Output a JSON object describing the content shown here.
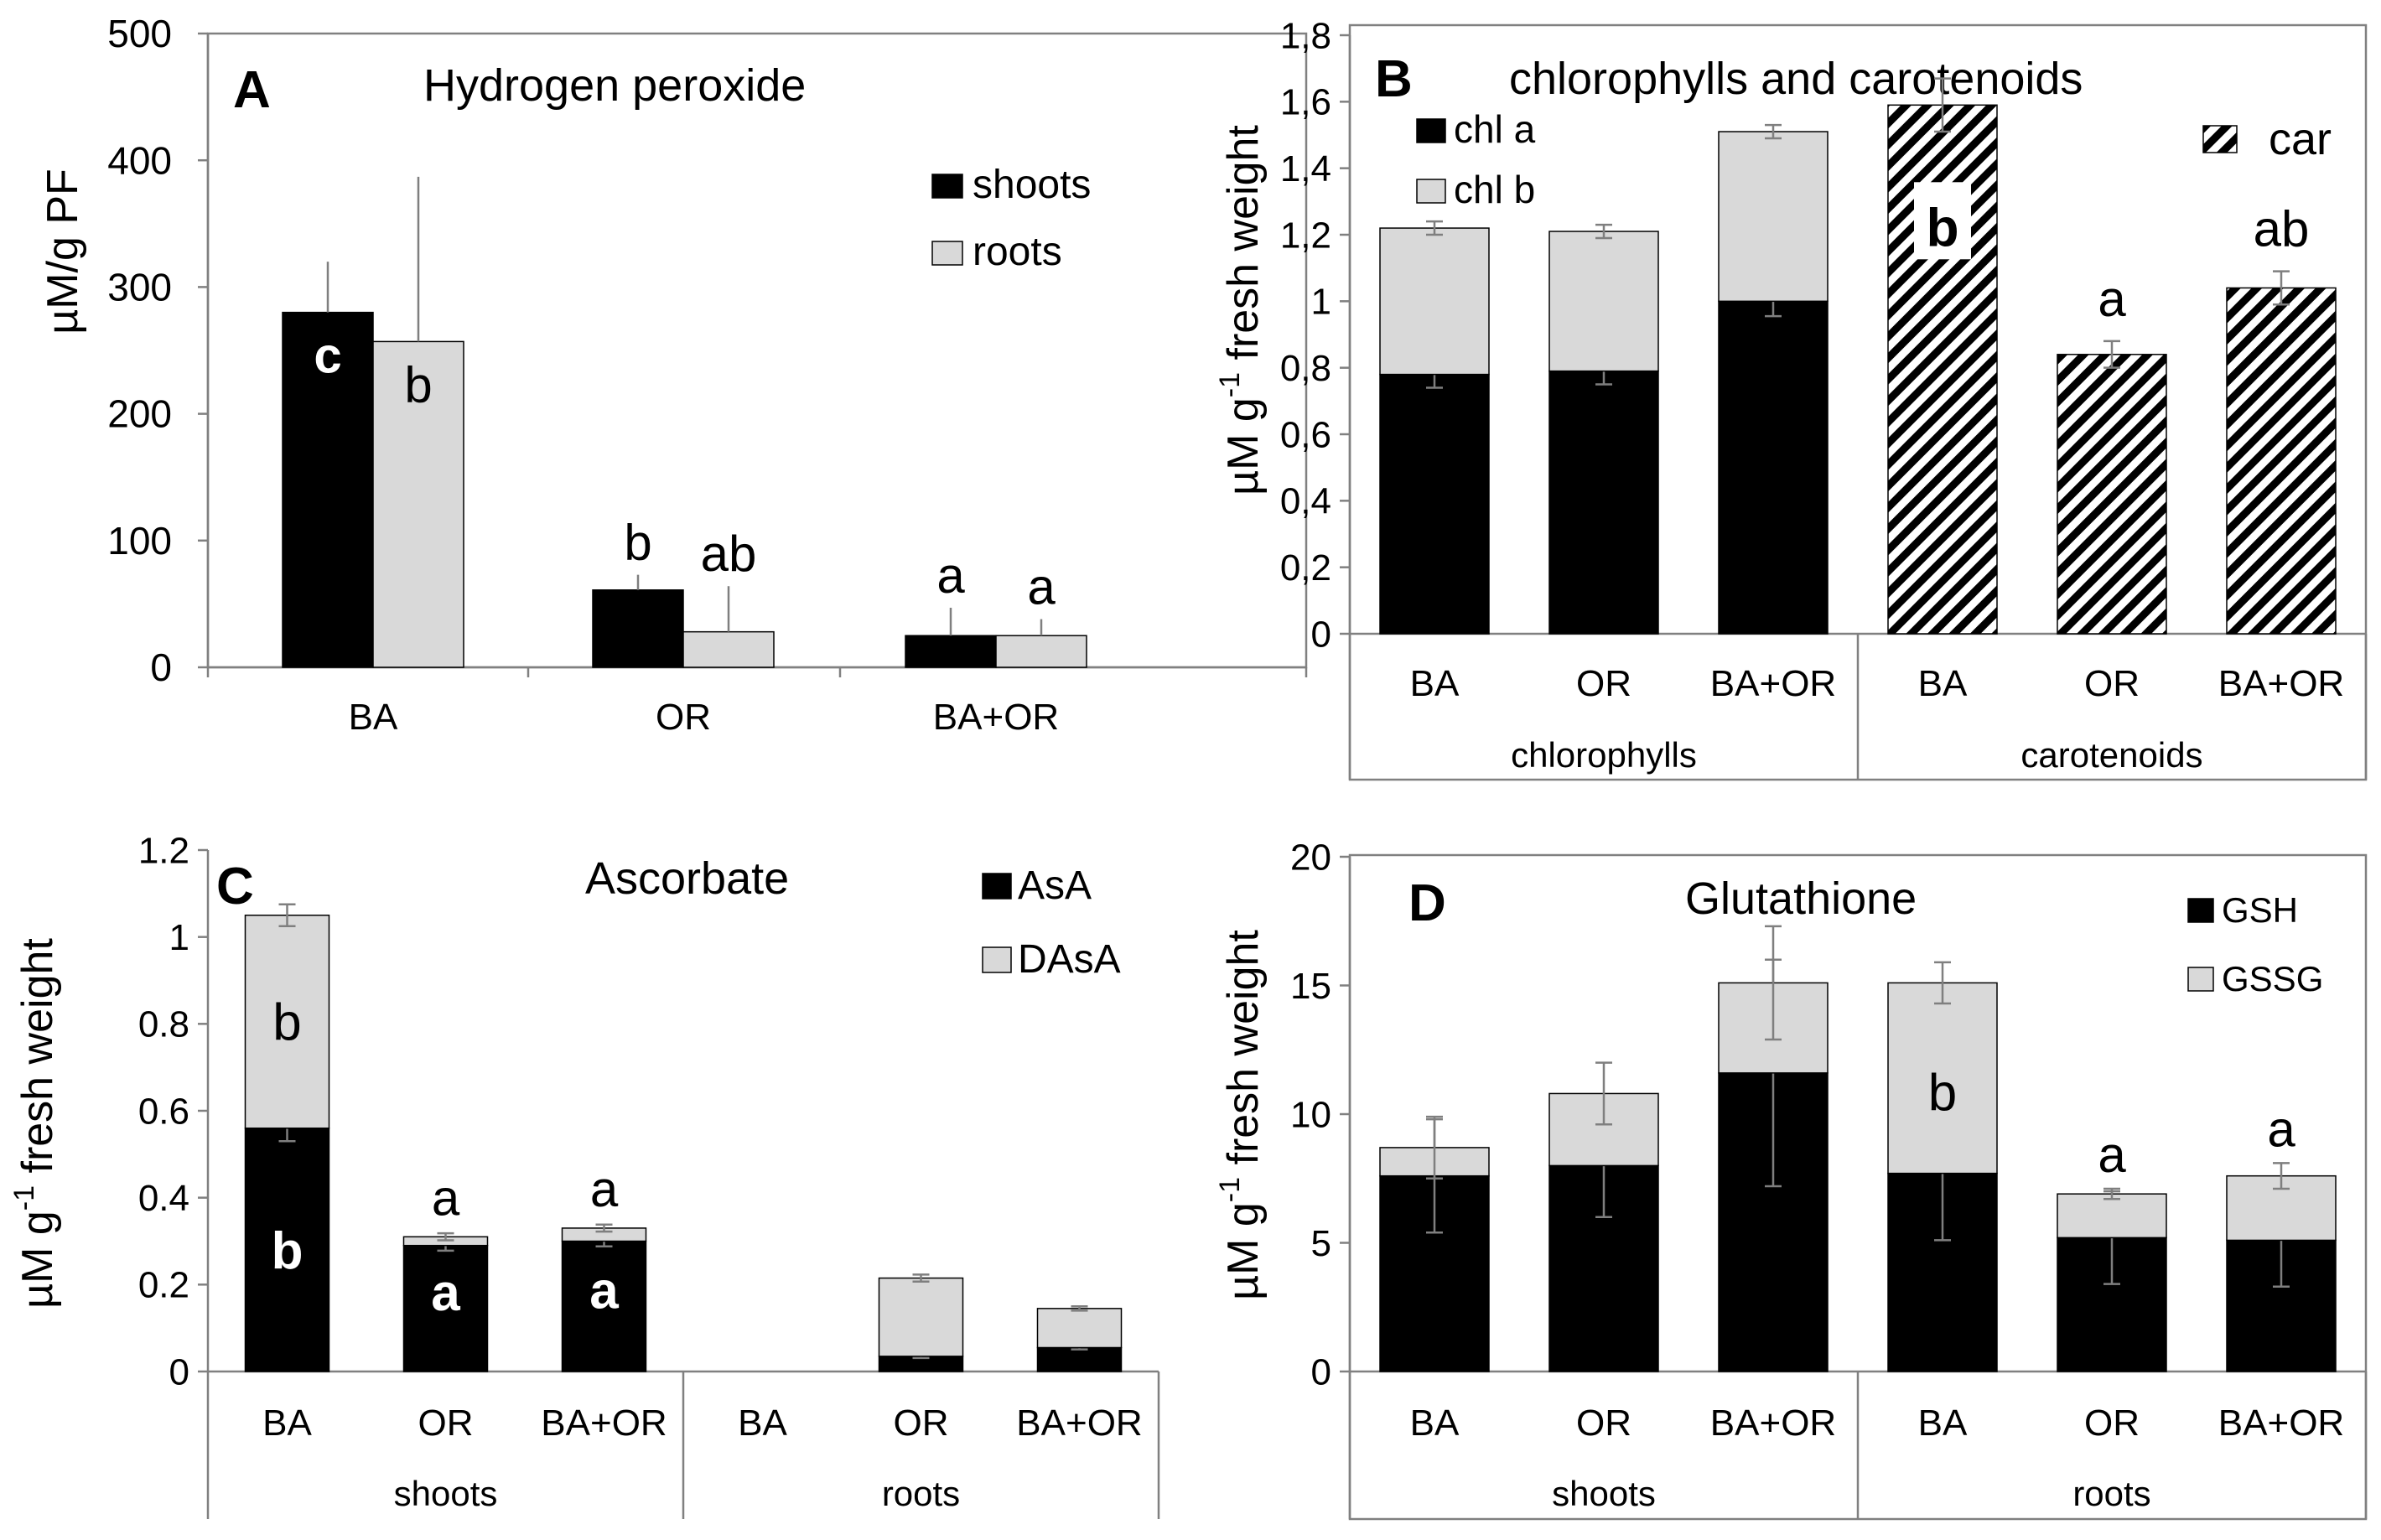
{
  "colors": {
    "black": "#000000",
    "grey": "#d9d9d9",
    "axis": "#808080",
    "error": "#7f7f7f"
  },
  "chart_data": [
    {
      "type": "bar",
      "panel": "A",
      "title": "Hydrogen  peroxide",
      "ylabel": "µM/g PF",
      "ylim": [
        0,
        500
      ],
      "yticks": [
        0,
        100,
        200,
        300,
        400,
        500
      ],
      "categories": [
        "BA",
        "OR",
        "BA+OR"
      ],
      "legend": {
        "placement": "top-right",
        "entries": [
          {
            "label": "shoots",
            "color": "#000000"
          },
          {
            "label": "roots",
            "color": "#d9d9d9"
          }
        ]
      },
      "series": [
        {
          "name": "shoots",
          "color": "#000000",
          "values": [
            280,
            61,
            25
          ],
          "errors": [
            40,
            12,
            22
          ],
          "letters": [
            "c",
            "b",
            "a"
          ],
          "letter_inside": [
            true,
            false,
            false
          ]
        },
        {
          "name": "roots",
          "color": "#d9d9d9",
          "values": [
            257,
            28,
            25
          ],
          "errors": [
            130,
            36,
            13
          ],
          "letters": [
            "b",
            "ab",
            "a"
          ],
          "letter_inside": [
            true,
            false,
            false
          ]
        }
      ]
    },
    {
      "type": "bar",
      "panel": "B",
      "title": "chlorophylls  and carotenoids",
      "ylabel_main": "µM g",
      "ylabel_sup": "-1",
      "ylabel_tail": " fresh weight",
      "ylim": [
        0,
        1.8
      ],
      "yticks": [
        "0",
        "0,2",
        "0,4",
        "0,6",
        "0,8",
        "1",
        "1,2",
        "1,4",
        "1,6",
        "1,8"
      ],
      "categories": [
        "BA",
        "OR",
        "BA+OR",
        "BA",
        "OR",
        "BA+OR"
      ],
      "groups": [
        "chlorophylls",
        "carotenoids"
      ],
      "legend": {
        "entries": [
          {
            "label": "chl a",
            "color": "#000000"
          },
          {
            "label": "chl b",
            "color": "#d9d9d9"
          },
          {
            "label": "car",
            "color": "hatch"
          }
        ]
      },
      "series": [
        {
          "name": "chl a",
          "color": "#000000",
          "values": [
            0.78,
            0.79,
            1.0,
            null,
            null,
            null
          ],
          "errors": [
            0.04,
            0.04,
            0.045,
            null,
            null,
            null
          ]
        },
        {
          "name": "chl b",
          "color": "#d9d9d9",
          "values": [
            0.44,
            0.42,
            0.51,
            null,
            null,
            null
          ],
          "errors": [
            0.02,
            0.02,
            0.02,
            null,
            null,
            null
          ]
        },
        {
          "name": "car",
          "color": "hatch",
          "values": [
            null,
            null,
            null,
            1.59,
            0.84,
            1.04
          ],
          "errors": [
            null,
            null,
            null,
            0.08,
            0.04,
            0.05
          ],
          "letters": [
            null,
            null,
            null,
            "b",
            "a",
            "ab"
          ]
        }
      ]
    },
    {
      "type": "bar",
      "panel": "C",
      "title": "Ascorbate",
      "ylabel_main": "µM g",
      "ylabel_sup": "-1",
      "ylabel_tail": " fresh weight",
      "ylim": [
        0,
        1.2
      ],
      "yticks": [
        "0",
        "0.2",
        "0.4",
        "0.6",
        "0.8",
        "1",
        "1.2"
      ],
      "categories": [
        "BA",
        "OR",
        "BA+OR",
        "BA",
        "OR",
        "BA+OR"
      ],
      "groups": [
        "shoots",
        "roots"
      ],
      "legend": {
        "entries": [
          {
            "label": "AsA",
            "color": "#000000"
          },
          {
            "label": "DAsA",
            "color": "#d9d9d9"
          }
        ]
      },
      "series": [
        {
          "name": "AsA",
          "color": "#000000",
          "values": [
            0.56,
            0.29,
            0.3,
            0,
            0.035,
            0.055
          ],
          "errors": [
            0.03,
            0.012,
            0.012,
            null,
            0.004,
            0.004
          ],
          "letters": [
            "b",
            "a",
            "a",
            null,
            null,
            null
          ]
        },
        {
          "name": "DAsA",
          "color": "#d9d9d9",
          "values": [
            0.49,
            0.02,
            0.03,
            0,
            0.18,
            0.09
          ],
          "errors": [
            0.025,
            0.008,
            0.008,
            null,
            0.008,
            0.005
          ],
          "letters": [
            "b",
            "a",
            "a",
            null,
            null,
            null
          ]
        }
      ]
    },
    {
      "type": "bar",
      "panel": "D",
      "title": "Glutathione",
      "ylabel_main": "µM g",
      "ylabel_sup": "-1",
      "ylabel_tail": " fresh weight",
      "ylim": [
        0,
        20
      ],
      "yticks": [
        "0",
        "5",
        "10",
        "15",
        "20"
      ],
      "categories": [
        "BA",
        "OR",
        "BA+OR",
        "BA",
        "OR",
        "BA+OR"
      ],
      "groups": [
        "shoots",
        "roots"
      ],
      "legend": {
        "entries": [
          {
            "label": "GSH",
            "color": "#000000"
          },
          {
            "label": "GSSG",
            "color": "#d9d9d9"
          }
        ]
      },
      "series": [
        {
          "name": "GSH",
          "color": "#000000",
          "values": [
            7.6,
            8.0,
            11.6,
            7.7,
            5.2,
            5.1
          ],
          "errors": [
            2.2,
            2.0,
            4.4,
            2.6,
            1.8,
            1.8
          ]
        },
        {
          "name": "GSSG",
          "color": "#d9d9d9",
          "values": [
            1.1,
            2.8,
            3.5,
            7.4,
            1.7,
            2.5
          ],
          "errors": [
            1.2,
            1.2,
            2.2,
            0.8,
            0.2,
            0.5
          ],
          "letters": [
            null,
            null,
            null,
            "b",
            "a",
            "a"
          ]
        }
      ]
    }
  ]
}
